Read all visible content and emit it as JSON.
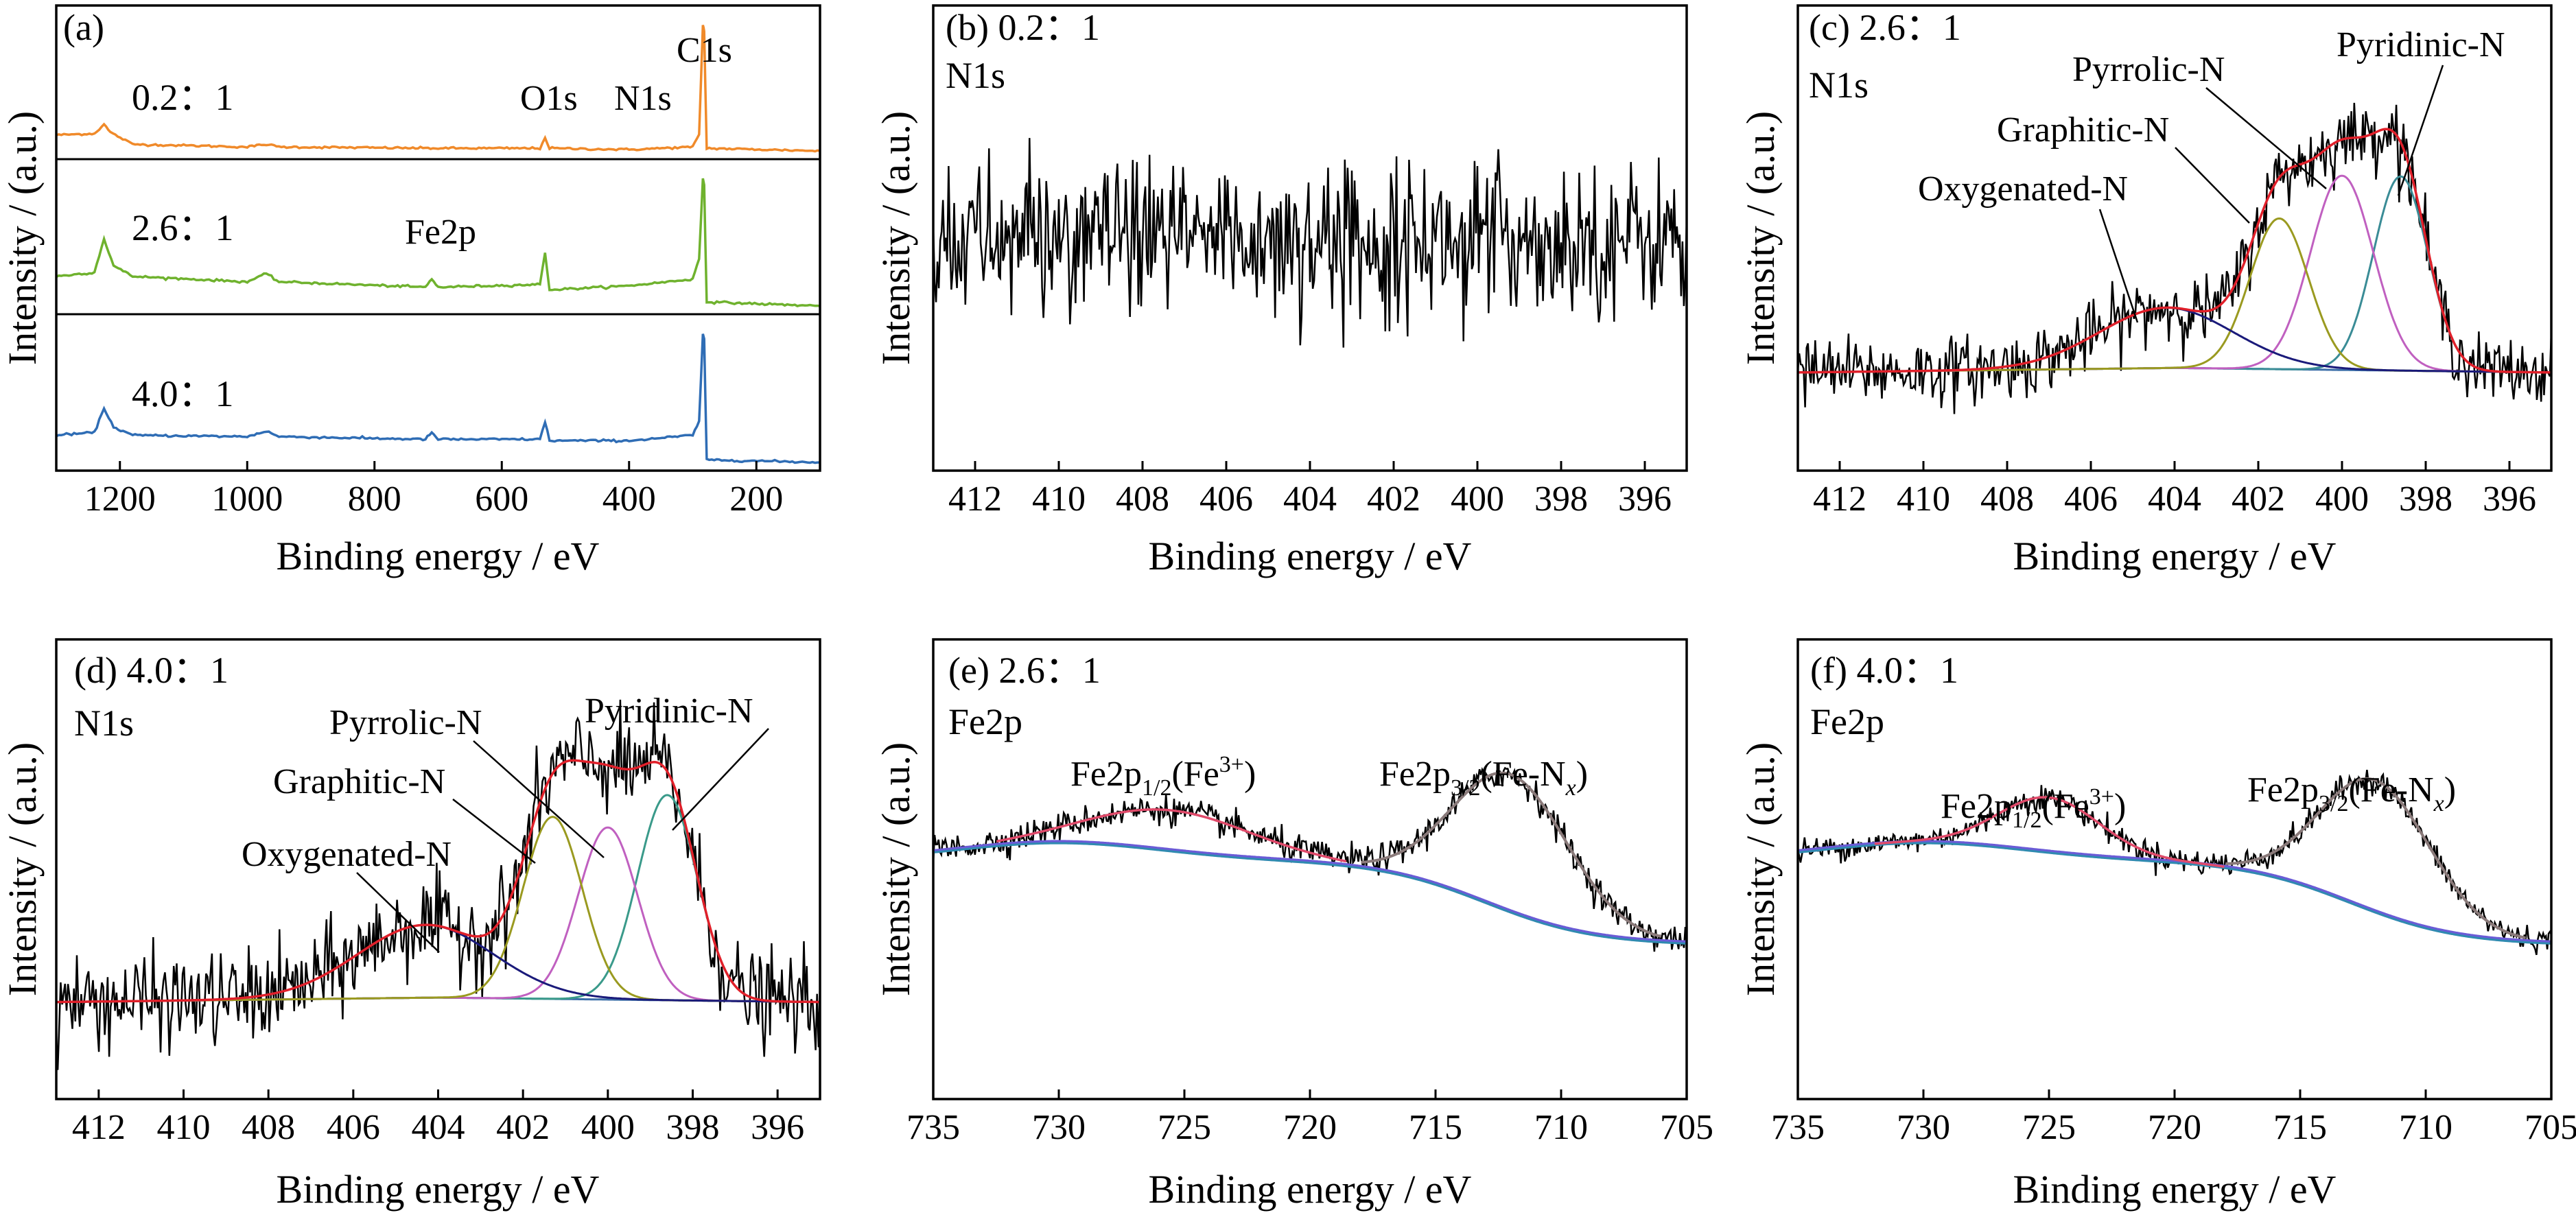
{
  "chart_data": [
    {
      "panel": "(a)",
      "type": "line",
      "xlabel": "Binding energy / eV",
      "ylabel": "Intensity / (a.u.)",
      "xlim": [
        1300,
        100
      ],
      "xticks": [
        1200,
        1000,
        800,
        600,
        400,
        200
      ],
      "stacked": true,
      "annotations": [
        "C1s",
        "O1s",
        "N1s",
        "Fe2p"
      ],
      "series": [
        {
          "name": "0.2：1",
          "color": "#f08a2a",
          "points": [
            [
              1300,
              0.12
            ],
            [
              1240,
              0.13
            ],
            [
              1225,
              0.2
            ],
            [
              1215,
              0.14
            ],
            [
              1180,
              0.05
            ],
            [
              1000,
              0.03
            ],
            [
              970,
              0.05
            ],
            [
              950,
              0.03
            ],
            [
              700,
              0.02
            ],
            [
              540,
              0.02
            ],
            [
              532,
              0.1
            ],
            [
              525,
              0.02
            ],
            [
              400,
              0.01
            ],
            [
              300,
              0.03
            ],
            [
              290,
              0.12
            ],
            [
              284,
              0.95
            ],
            [
              282,
              0.9
            ],
            [
              278,
              0.02
            ],
            [
              100,
              0.0
            ]
          ]
        },
        {
          "name": "2.6：1",
          "color": "#6fb22e",
          "points": [
            [
              1300,
              0.22
            ],
            [
              1240,
              0.25
            ],
            [
              1225,
              0.5
            ],
            [
              1210,
              0.3
            ],
            [
              1180,
              0.22
            ],
            [
              1000,
              0.18
            ],
            [
              970,
              0.24
            ],
            [
              950,
              0.18
            ],
            [
              720,
              0.14
            ],
            [
              710,
              0.2
            ],
            [
              700,
              0.14
            ],
            [
              540,
              0.16
            ],
            [
              532,
              0.4
            ],
            [
              525,
              0.12
            ],
            [
              400,
              0.15
            ],
            [
              300,
              0.2
            ],
            [
              290,
              0.35
            ],
            [
              284,
              0.95
            ],
            [
              282,
              0.9
            ],
            [
              278,
              0.03
            ],
            [
              100,
              0.0
            ]
          ]
        },
        {
          "name": "4.0：1",
          "color": "#2f6db5",
          "points": [
            [
              1300,
              0.2
            ],
            [
              1240,
              0.22
            ],
            [
              1225,
              0.4
            ],
            [
              1210,
              0.26
            ],
            [
              1180,
              0.2
            ],
            [
              1000,
              0.19
            ],
            [
              970,
              0.23
            ],
            [
              950,
              0.19
            ],
            [
              720,
              0.17
            ],
            [
              710,
              0.22
            ],
            [
              700,
              0.17
            ],
            [
              540,
              0.17
            ],
            [
              532,
              0.3
            ],
            [
              525,
              0.16
            ],
            [
              400,
              0.16
            ],
            [
              300,
              0.2
            ],
            [
              290,
              0.3
            ],
            [
              284,
              0.95
            ],
            [
              282,
              0.9
            ],
            [
              278,
              0.02
            ],
            [
              100,
              0.0
            ]
          ]
        }
      ]
    },
    {
      "panel": "(b) 0.2：1",
      "type": "line",
      "title": "N1s",
      "xlabel": "Binding energy / eV",
      "ylabel": "Intensity / (a.u.)",
      "xlim": [
        413,
        395
      ],
      "xticks": [
        412,
        410,
        408,
        406,
        404,
        402,
        400,
        398,
        396
      ],
      "series": [
        {
          "name": "",
          "color": "#000000",
          "shape": "noise"
        }
      ]
    },
    {
      "panel": "(c) 2.6：1",
      "type": "line",
      "title": "N1s",
      "xlabel": "Binding energy / eV",
      "ylabel": "Intensity / (a.u.)",
      "xlim": [
        413,
        395
      ],
      "xticks": [
        412,
        410,
        408,
        406,
        404,
        402,
        400,
        398,
        396
      ],
      "annotations": [
        "Pyridinic-N",
        "Pyrrolic-N",
        "Graphitic-N",
        "Oxygenated-N"
      ],
      "components": [
        {
          "name": "Pyridinic-N",
          "center": 398.6,
          "width": 0.65,
          "height": 0.58,
          "color": "#3a8c96"
        },
        {
          "name": "Pyrrolic-N",
          "center": 400.0,
          "width": 0.75,
          "height": 0.58,
          "color": "#c060c0"
        },
        {
          "name": "Graphitic-N",
          "center": 401.5,
          "width": 0.7,
          "height": 0.45,
          "color": "#9a9a20"
        },
        {
          "name": "Oxygenated-N",
          "center": 404.2,
          "width": 1.6,
          "height": 0.18,
          "color": "#1a1a7a"
        }
      ]
    },
    {
      "panel": "(d) 4.0：1",
      "type": "line",
      "title": "N1s",
      "xlabel": "Binding energy / eV",
      "ylabel": "Intensity / (a.u.)",
      "xlim": [
        413,
        395
      ],
      "xticks": [
        412,
        410,
        408,
        406,
        404,
        402,
        400,
        398,
        396
      ],
      "annotations": [
        "Pyridinic-N",
        "Pyrrolic-N",
        "Graphitic-N",
        "Oxygenated-N"
      ],
      "components": [
        {
          "name": "Pyridinic-N",
          "center": 398.6,
          "width": 0.7,
          "height": 0.62,
          "color": "#3a9a8a"
        },
        {
          "name": "Pyrrolic-N",
          "center": 400.0,
          "width": 0.7,
          "height": 0.52,
          "color": "#c060c0"
        },
        {
          "name": "Graphitic-N",
          "center": 401.3,
          "width": 0.7,
          "height": 0.55,
          "color": "#9a9a20"
        },
        {
          "name": "Oxygenated-N",
          "center": 404.3,
          "width": 1.6,
          "height": 0.22,
          "color": "#1a1a7a"
        }
      ]
    },
    {
      "panel": "(e) 2.6：1",
      "type": "line",
      "title": "Fe2p",
      "xlabel": "Binding energy / eV",
      "ylabel": "Intensity / (a.u.)",
      "xlim": [
        735,
        705
      ],
      "xticks": [
        735,
        730,
        725,
        720,
        715,
        710,
        705
      ],
      "annotations": [
        "Fe2p1/2(Fe3+)",
        "Fe2p3/2(Fe-Nx)"
      ],
      "components": [
        {
          "name": "Fe2p1/2(Fe3+)",
          "center": 725.5,
          "width": 3.2,
          "height": 0.14
        },
        {
          "name": "Fe2p3/2(Fe-Nx)",
          "center": 712.0,
          "width": 2.3,
          "height": 0.48
        }
      ]
    },
    {
      "panel": "(f) 4.0：1",
      "type": "line",
      "title": "Fe2p",
      "xlabel": "Binding energy / eV",
      "ylabel": "Intensity / (a.u.)",
      "xlim": [
        735,
        705
      ],
      "xticks": [
        735,
        730,
        725,
        720,
        715,
        710,
        705
      ],
      "annotations": [
        "Fe2p1/2(Fe3+)",
        "Fe2p3/2(Fe-Nx)"
      ],
      "components": [
        {
          "name": "Fe2p1/2(Fe3+)",
          "center": 725.0,
          "width": 2.0,
          "height": 0.19
        },
        {
          "name": "Fe2p3/2(Fe-Nx)",
          "center": 712.0,
          "width": 2.2,
          "height": 0.46
        }
      ]
    }
  ],
  "labels": {
    "a_panel": "(a)",
    "a_s1": "0.2：1",
    "a_s2": "2.6：1",
    "a_s3": "4.0：1",
    "a_c1s": "C1s",
    "a_o1s": "O1s",
    "a_n1s": "N1s",
    "a_fe2p": "Fe2p",
    "b_panel": "(b) 0.2：1",
    "c_panel": "(c) 2.6：1",
    "d_panel": "(d) 4.0：1",
    "e_panel": "(e) 2.6：1",
    "f_panel": "(f) 4.0：1",
    "n1s": "N1s",
    "fe2p": "Fe2p",
    "pyridinic": "Pyridinic-N",
    "pyrrolic": "Pyrrolic-N",
    "graphitic": "Graphitic-N",
    "oxygenated": "Oxygenated-N",
    "xlabel": "Binding energy / eV",
    "ylabel": "Intensity / (a.u.)",
    "fe_half_main": "Fe2p",
    "fe_half_sub": "1/2",
    "fe_half_tail": "(Fe",
    "fe_half_sup": "3+",
    "fe_half_end": ")",
    "fe_three_main": "Fe2p",
    "fe_three_sub": "3/2",
    "fe_three_tail": "(Fe-N",
    "fe_three_x": "x",
    "fe_three_end": ")"
  }
}
